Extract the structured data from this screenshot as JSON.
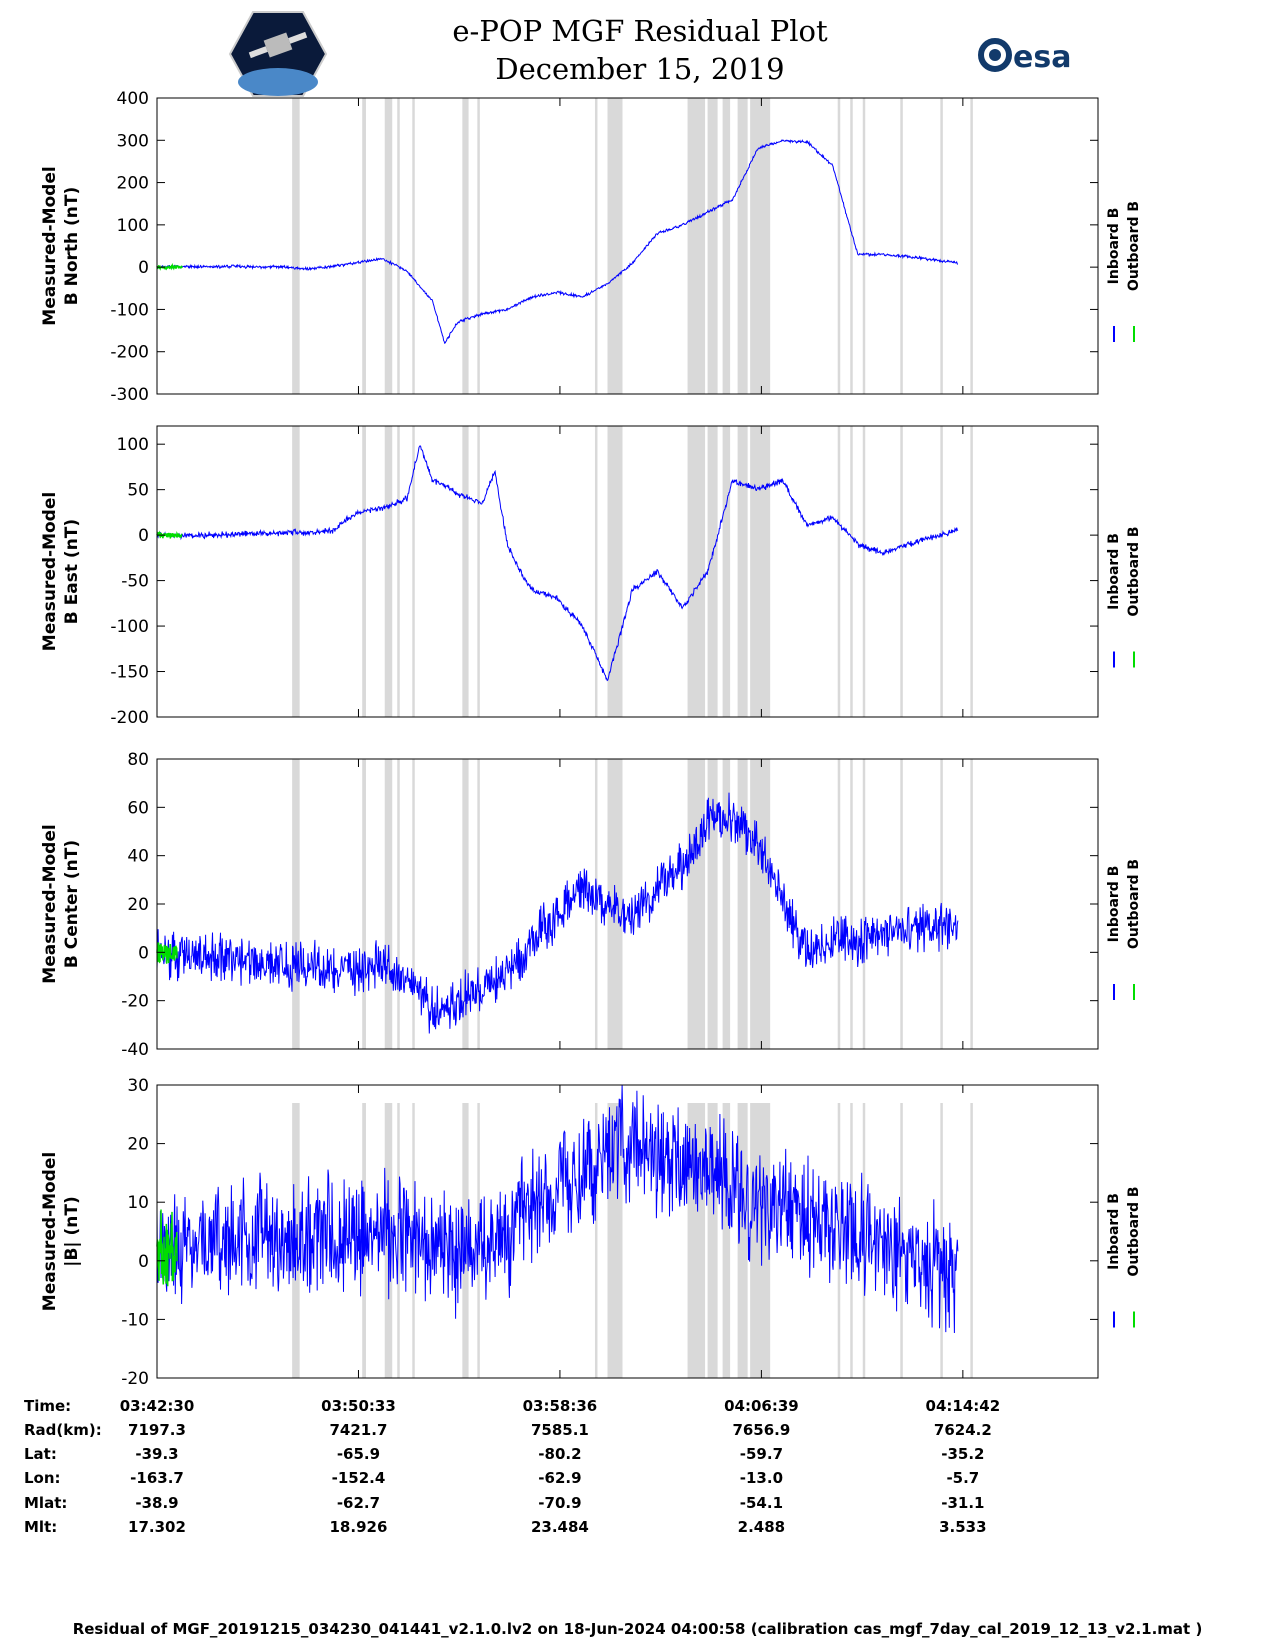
{
  "header": {
    "title_line1": "e-POP MGF Residual Plot",
    "title_line2": "December 15, 2019",
    "logo_left_icon": "cassiope-satellite-logo-icon",
    "logo_right_icon": "esa-logo-icon",
    "logo_right_text": "esa"
  },
  "colors": {
    "inboard": "#0000ff",
    "outboard": "#00dd00",
    "gap": "#d9d9d9"
  },
  "chart_data": [
    {
      "type": "line",
      "ylabel_line1": "Measured-Model",
      "ylabel_line2": "B North (nT)",
      "ylim": [
        -300,
        400
      ],
      "yticks": [
        400,
        300,
        200,
        100,
        0,
        -100,
        -200,
        -300
      ],
      "legend": [
        "Inboard B",
        "Outboard B"
      ],
      "legend_placement": "right",
      "series": [
        {
          "name": "Inboard B",
          "x_min": [
            0,
            1,
            2,
            3,
            4,
            5,
            6,
            7,
            8,
            9,
            10,
            11,
            11.5,
            12,
            13,
            14,
            15,
            16,
            17,
            18,
            19,
            20,
            21,
            22,
            23,
            24,
            25,
            26,
            27,
            28,
            29,
            30,
            32
          ],
          "y": [
            0,
            2,
            0,
            2,
            0,
            1,
            -4,
            2,
            10,
            20,
            -10,
            -80,
            -180,
            -130,
            -110,
            -100,
            -70,
            -60,
            -70,
            -40,
            10,
            80,
            100,
            130,
            160,
            280,
            300,
            295,
            240,
            30,
            30,
            25,
            10
          ]
        },
        {
          "name": "Outboard B",
          "x_min": [
            0,
            1
          ],
          "y": [
            0,
            0
          ]
        }
      ],
      "noise": [
        4,
        4
      ]
    },
    {
      "type": "line",
      "ylabel_line1": "Measured-Model",
      "ylabel_line2": "B East (nT)",
      "ylim": [
        -200,
        120
      ],
      "yticks": [
        100,
        50,
        0,
        -50,
        -100,
        -150,
        -200
      ],
      "legend": [
        "Inboard B",
        "Outboard B"
      ],
      "legend_placement": "right",
      "series": [
        {
          "name": "Inboard B",
          "x_min": [
            0,
            2,
            4,
            6,
            7,
            7.5,
            8,
            9,
            10,
            10.5,
            11,
            11.5,
            12,
            13,
            13.5,
            14,
            14.5,
            15,
            16,
            17,
            18,
            19,
            20,
            21,
            22,
            23,
            24,
            25,
            26,
            27,
            28,
            29,
            30,
            32
          ],
          "y": [
            0,
            0,
            2,
            3,
            5,
            15,
            25,
            30,
            40,
            100,
            60,
            55,
            45,
            35,
            70,
            -10,
            -40,
            -60,
            -70,
            -100,
            -160,
            -60,
            -40,
            -80,
            -40,
            60,
            50,
            60,
            10,
            20,
            -10,
            -20,
            -10,
            5
          ]
        },
        {
          "name": "Outboard B",
          "x_min": [
            0,
            1
          ],
          "y": [
            0,
            0
          ]
        }
      ],
      "noise": [
        4,
        4
      ]
    },
    {
      "type": "line",
      "ylabel_line1": "Measured-Model",
      "ylabel_line2": "B Center (nT)",
      "ylim": [
        -40,
        80
      ],
      "yticks": [
        80,
        60,
        40,
        20,
        0,
        -20,
        -40
      ],
      "legend": [
        "Inboard B",
        "Outboard B"
      ],
      "legend_placement": "right",
      "series": [
        {
          "name": "Inboard B",
          "x_min": [
            0,
            2,
            4,
            6,
            8,
            9,
            10,
            11,
            12,
            13,
            14,
            15,
            16,
            17,
            18,
            19,
            20,
            21,
            22,
            23,
            24,
            25,
            26,
            27,
            28,
            29,
            30,
            32
          ],
          "y": [
            0,
            -2,
            -4,
            -6,
            -8,
            -5,
            -10,
            -25,
            -20,
            -15,
            -10,
            5,
            15,
            25,
            20,
            15,
            25,
            35,
            55,
            55,
            45,
            20,
            0,
            5,
            5,
            8,
            10,
            10
          ]
        },
        {
          "name": "Outboard B",
          "x_min": [
            0,
            0.8
          ],
          "y": [
            0,
            0
          ]
        }
      ],
      "noise": [
        9,
        4
      ]
    },
    {
      "type": "line",
      "ylabel_line1": "Measured-Model",
      "ylabel_line2": "|B| (nT)",
      "ylim": [
        -20,
        30
      ],
      "yticks": [
        30,
        20,
        10,
        0,
        -10,
        -20
      ],
      "legend": [
        "Inboard B",
        "Outboard B"
      ],
      "legend_placement": "right",
      "series": [
        {
          "name": "Inboard B",
          "x_min": [
            0,
            2,
            4,
            6,
            8,
            10,
            12,
            14,
            16,
            18,
            19,
            20,
            22,
            24,
            26,
            28,
            30,
            32
          ],
          "y": [
            1,
            3,
            4,
            5,
            5,
            4,
            1,
            5,
            12,
            18,
            20,
            18,
            15,
            10,
            7,
            4,
            1,
            -2
          ]
        },
        {
          "name": "Outboard B",
          "x_min": [
            0,
            0.8
          ],
          "y": [
            2,
            2
          ]
        }
      ],
      "noise": [
        9,
        6
      ]
    }
  ],
  "gaps_min": [
    [
      5.4,
      5.7
    ],
    [
      8.2,
      8.35
    ],
    [
      9.1,
      9.4
    ],
    [
      9.6,
      9.7
    ],
    [
      10.2,
      10.3
    ],
    [
      12.2,
      12.45
    ],
    [
      12.8,
      12.9
    ],
    [
      17.5,
      17.6
    ],
    [
      18,
      18.6
    ],
    [
      21.2,
      21.9
    ],
    [
      22,
      22.4
    ],
    [
      22.6,
      22.9
    ],
    [
      23.2,
      23.6
    ],
    [
      23.7,
      24.5
    ],
    [
      27.2,
      27.3
    ],
    [
      27.7,
      27.8
    ],
    [
      28.2,
      28.3
    ],
    [
      29.7,
      29.8
    ],
    [
      31.3,
      31.4
    ],
    [
      32.5,
      32.6
    ]
  ],
  "x_range_min": [
    0,
    37.6
  ],
  "ephemeris": {
    "labels": [
      "Time:",
      "Rad(km):",
      "Lat:",
      "Lon:",
      "Mlat:",
      "Mlt:"
    ],
    "columns": [
      [
        "03:42:30",
        "7197.3",
        "-39.3",
        "-163.7",
        "-38.9",
        "17.302"
      ],
      [
        "03:50:33",
        "7421.7",
        "-65.9",
        "-152.4",
        "-62.7",
        "18.926"
      ],
      [
        "03:58:36",
        "7585.1",
        "-80.2",
        "-62.9",
        "-70.9",
        "23.484"
      ],
      [
        "04:06:39",
        "7656.9",
        "-59.7",
        "-13.0",
        "-54.1",
        "2.488"
      ],
      [
        "04:14:42",
        "7624.2",
        "-35.2",
        "-5.7",
        "-31.1",
        "3.533"
      ]
    ]
  },
  "footer": "Residual of MGF_20191215_034230_041441_v2.1.0.lv2 on 18-Jun-2024 04:00:58 (calibration cas_mgf_7day_cal_2019_12_13_v2.1.mat )"
}
